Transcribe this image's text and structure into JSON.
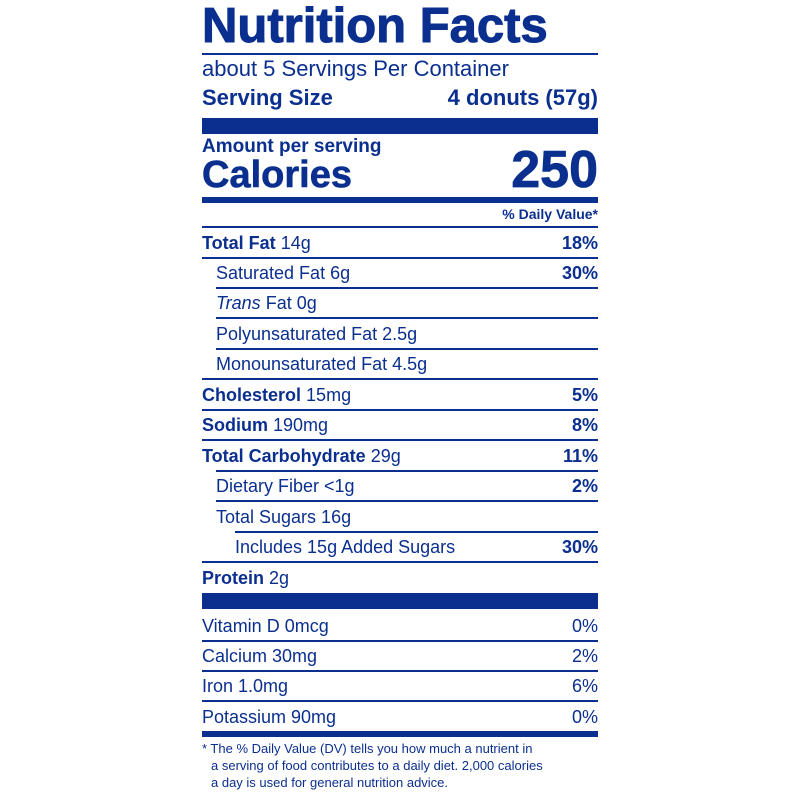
{
  "label": {
    "title": "Nutrition Facts",
    "servings_per_container": "about 5 Servings Per Container",
    "serving_size_label": "Serving Size",
    "serving_size_value": "4 donuts (57g)",
    "amount_per_serving": "Amount per serving",
    "calories_label": "Calories",
    "calories_value": "250",
    "daily_value_header": "% Daily Value*"
  },
  "nutrients": {
    "total_fat": {
      "name": "Total Fat",
      "amount": "14g",
      "dv": "18%"
    },
    "saturated_fat": {
      "name": "Saturated Fat 6g",
      "dv": "30%"
    },
    "trans_fat": {
      "name_italic": "Trans",
      "name_rest": "Fat 0g"
    },
    "polyunsaturated_fat": {
      "name": "Polyunsaturated Fat 2.5g"
    },
    "monounsaturated_fat": {
      "name": "Monounsaturated Fat 4.5g"
    },
    "cholesterol": {
      "name": "Cholesterol",
      "amount": "15mg",
      "dv": "5%"
    },
    "sodium": {
      "name": "Sodium",
      "amount": "190mg",
      "dv": "8%"
    },
    "total_carbohydrate": {
      "name": "Total Carbohydrate",
      "amount": "29g",
      "dv": "11%"
    },
    "dietary_fiber": {
      "name": "Dietary Fiber <1g",
      "dv": "2%"
    },
    "total_sugars": {
      "name": "Total Sugars 16g"
    },
    "added_sugars": {
      "name": "Includes 15g Added Sugars",
      "dv": "30%"
    },
    "protein": {
      "name": "Protein",
      "amount": "2g"
    }
  },
  "vitamins": {
    "vitamin_d": {
      "name": "Vitamin D 0mcg",
      "dv": "0%"
    },
    "calcium": {
      "name": "Calcium 30mg",
      "dv": "2%"
    },
    "iron": {
      "name": "Iron 1.0mg",
      "dv": "6%"
    },
    "potassium": {
      "name": "Potassium 90mg",
      "dv": "0%"
    }
  },
  "footnote": {
    "line1": "* The % Daily Value (DV) tells you how much a nutrient in",
    "line2": "a serving of food contributes to a daily diet. 2,000 calories",
    "line3": "a day is used for general nutrition advice."
  },
  "colors": {
    "ink": "#0b2f8f",
    "background": "#ffffff"
  }
}
